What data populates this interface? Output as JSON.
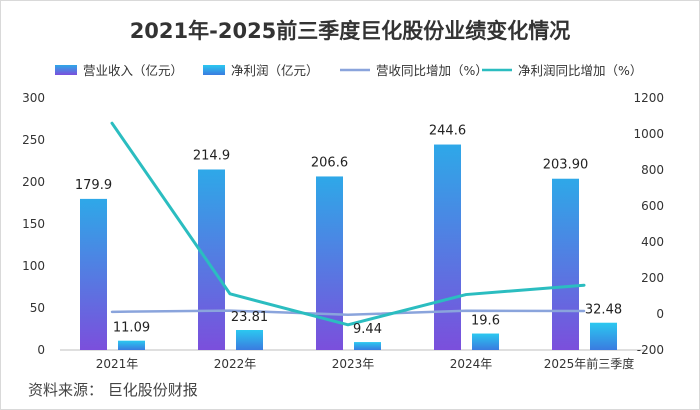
{
  "chart_data": {
    "type": "bar",
    "title": "2021年-2025前三季度巨化股份业绩变化情况",
    "categories": [
      "2021年",
      "2022年",
      "2023年",
      "2024年",
      "2025年前三季度"
    ],
    "series": [
      {
        "name": "营业收入（亿元）",
        "type": "bar",
        "axis": "left",
        "values": [
          179.9,
          214.9,
          206.6,
          244.6,
          203.9
        ],
        "labels": [
          "179.9",
          "214.9",
          "206.6",
          "244.6",
          "203.90"
        ]
      },
      {
        "name": "净利润（亿元）",
        "type": "bar",
        "axis": "left",
        "values": [
          11.09,
          23.81,
          9.44,
          19.6,
          32.48
        ],
        "labels": [
          "11.09",
          "23.81",
          "9.44",
          "19.6",
          "32.48"
        ]
      },
      {
        "name": "营收同比增加（%）",
        "type": "line",
        "axis": "right",
        "values": [
          12,
          19,
          -4,
          18,
          17
        ]
      },
      {
        "name": "净利润同比增加（%）",
        "type": "line",
        "axis": "right",
        "values": [
          1060,
          112,
          -60,
          108,
          160
        ]
      }
    ],
    "left_ticks": [
      "0",
      "50",
      "100",
      "150",
      "200",
      "250",
      "300"
    ],
    "right_ticks": [
      "-200",
      "0",
      "200",
      "400",
      "600",
      "800",
      "1000",
      "1200"
    ],
    "ylim": [
      0,
      300
    ],
    "y2lim": [
      -200,
      1200
    ],
    "legend_position": "top",
    "source": "资料来源：  巨化股份财报",
    "colors": {
      "revenue_top": "#2ea8e8",
      "revenue_bottom": "#7b4fdc",
      "profit_top": "#2bc8f0",
      "profit_bottom": "#3a7be0",
      "revenue_growth_line": "#8aa4dc",
      "profit_growth_line": "#2bbdc0"
    }
  }
}
